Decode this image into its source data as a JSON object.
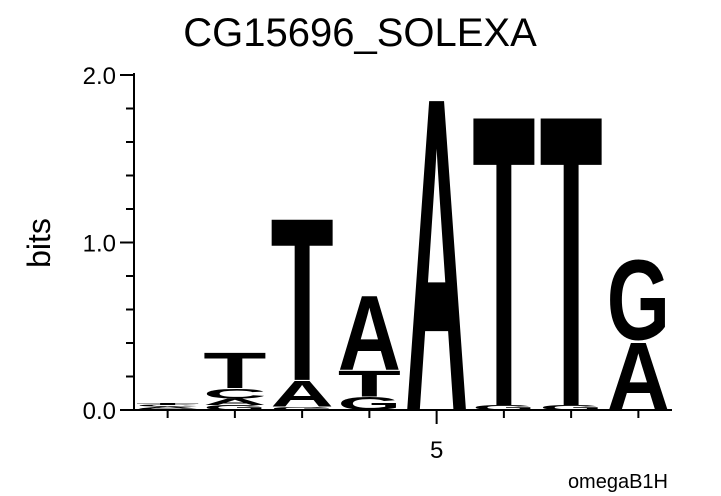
{
  "chart_data": {
    "type": "sequence-logo",
    "title": "CG15696_SOLEXA",
    "ylabel": "bits",
    "annotation": "omegaB1H",
    "categories": [
      null,
      null,
      null,
      null,
      "5",
      null,
      null,
      null
    ],
    "colors": {
      "A": "#008000",
      "C": "#0000ff",
      "G": "#ffa500",
      "T": "#ff0000"
    },
    "stacks": [
      [
        {
          "letter": "G",
          "bits": 0.01
        },
        {
          "letter": "A",
          "bits": 0.01
        },
        {
          "letter": "C",
          "bits": 0.01
        },
        {
          "letter": "T",
          "bits": 0.01
        }
      ],
      [
        {
          "letter": "G",
          "bits": 0.03
        },
        {
          "letter": "A",
          "bits": 0.04
        },
        {
          "letter": "C",
          "bits": 0.06
        },
        {
          "letter": "T",
          "bits": 0.22
        }
      ],
      [
        {
          "letter": "G",
          "bits": 0.02
        },
        {
          "letter": "A",
          "bits": 0.16
        },
        {
          "letter": "T",
          "bits": 1.0
        }
      ],
      [
        {
          "letter": "G",
          "bits": 0.08
        },
        {
          "letter": "T",
          "bits": 0.16
        },
        {
          "letter": "A",
          "bits": 0.46
        }
      ],
      [
        {
          "letter": "A",
          "bits": 1.93
        }
      ],
      [
        {
          "letter": "G",
          "bits": 0.03
        },
        {
          "letter": "T",
          "bits": 1.79
        }
      ],
      [
        {
          "letter": "G",
          "bits": 0.03
        },
        {
          "letter": "T",
          "bits": 1.79
        }
      ],
      [
        {
          "letter": "A",
          "bits": 0.42
        },
        {
          "letter": "G",
          "bits": 0.49
        }
      ]
    ],
    "ylim": [
      0,
      2
    ],
    "yticks": [
      {
        "value": 0,
        "label": "0.0"
      },
      {
        "value": 1,
        "label": "1.0"
      },
      {
        "value": 2,
        "label": "2.0"
      }
    ],
    "yminorticks": [
      0.2,
      0.4,
      0.6,
      0.8,
      1.2,
      1.4,
      1.6,
      1.8
    ]
  }
}
